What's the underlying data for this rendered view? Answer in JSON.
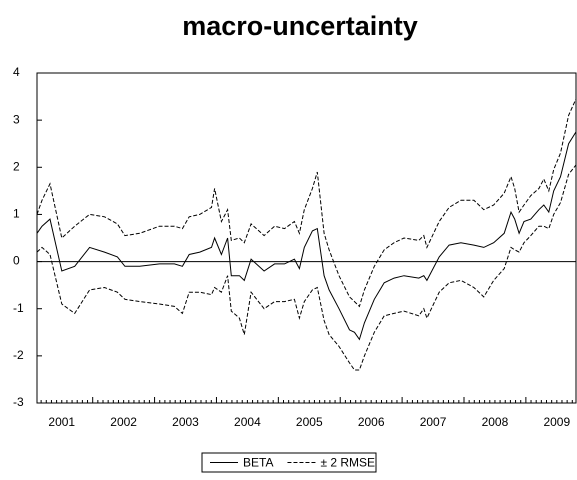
{
  "chart_data": {
    "type": "line",
    "title": "macro-uncertainty",
    "x": [
      2001.1,
      2001.18,
      2001.31,
      2001.5,
      2001.71,
      2001.95,
      2002.19,
      2002.4,
      2002.52,
      2002.76,
      2003.08,
      2003.32,
      2003.45,
      2003.56,
      2003.73,
      2003.92,
      2003.97,
      2004.08,
      2004.18,
      2004.24,
      2004.37,
      2004.45,
      2004.56,
      2004.77,
      2004.94,
      2005.1,
      2005.26,
      2005.34,
      2005.42,
      2005.55,
      2005.63,
      2005.74,
      2005.82,
      2005.98,
      2006.15,
      2006.23,
      2006.31,
      2006.39,
      2006.55,
      2006.71,
      2006.87,
      2007.03,
      2007.27,
      2007.35,
      2007.4,
      2007.6,
      2007.76,
      2007.95,
      2008.16,
      2008.32,
      2008.48,
      2008.65,
      2008.76,
      2008.82,
      2008.89,
      2008.97,
      2009.08,
      2009.21,
      2009.29,
      2009.37,
      2009.45,
      2009.56,
      2009.69,
      2009.81
    ],
    "series": [
      {
        "name": "BETA",
        "color": "#000000",
        "style": "solid",
        "values": [
          0.6,
          0.75,
          0.9,
          -0.2,
          -0.1,
          0.3,
          0.2,
          0.1,
          -0.1,
          -0.1,
          -0.05,
          -0.05,
          -0.1,
          0.15,
          0.2,
          0.3,
          0.5,
          0.15,
          0.5,
          -0.3,
          -0.3,
          -0.4,
          0.05,
          -0.2,
          -0.05,
          -0.05,
          0.05,
          -0.15,
          0.3,
          0.65,
          0.7,
          -0.3,
          -0.6,
          -1.0,
          -1.45,
          -1.5,
          -1.65,
          -1.3,
          -0.8,
          -0.45,
          -0.35,
          -0.3,
          -0.35,
          -0.3,
          -0.4,
          0.1,
          0.35,
          0.4,
          0.35,
          0.3,
          0.4,
          0.6,
          1.05,
          0.9,
          0.6,
          0.85,
          0.9,
          1.1,
          1.2,
          1.05,
          1.5,
          1.8,
          2.5,
          2.75
        ]
      },
      {
        "name": "± 2 RMSE",
        "color": "#000000",
        "style": "dashed",
        "values": [
          1.0,
          1.3,
          1.65,
          0.5,
          0.75,
          1.0,
          0.95,
          0.8,
          0.55,
          0.6,
          0.75,
          0.75,
          0.7,
          0.95,
          1.0,
          1.15,
          1.55,
          0.85,
          1.1,
          0.45,
          0.5,
          0.4,
          0.8,
          0.55,
          0.75,
          0.7,
          0.85,
          0.6,
          1.1,
          1.55,
          1.9,
          0.6,
          0.25,
          -0.3,
          -0.75,
          -0.85,
          -0.95,
          -0.6,
          -0.1,
          0.25,
          0.4,
          0.5,
          0.45,
          0.55,
          0.3,
          0.85,
          1.15,
          1.3,
          1.3,
          1.1,
          1.2,
          1.45,
          1.8,
          1.55,
          1.05,
          1.2,
          1.4,
          1.55,
          1.75,
          1.5,
          1.95,
          2.3,
          3.1,
          3.45
        ]
      },
      {
        "color": "#000000",
        "style": "dashed",
        "values": [
          0.2,
          0.3,
          0.15,
          -0.9,
          -1.1,
          -0.6,
          -0.55,
          -0.65,
          -0.8,
          -0.85,
          -0.9,
          -0.95,
          -1.1,
          -0.65,
          -0.65,
          -0.7,
          -0.55,
          -0.65,
          -0.3,
          -1.05,
          -1.2,
          -1.55,
          -0.65,
          -1.0,
          -0.85,
          -0.85,
          -0.8,
          -1.2,
          -0.85,
          -0.6,
          -0.55,
          -1.25,
          -1.55,
          -1.8,
          -2.15,
          -2.3,
          -2.3,
          -2.0,
          -1.5,
          -1.15,
          -1.1,
          -1.05,
          -1.15,
          -1.0,
          -1.2,
          -0.65,
          -0.45,
          -0.4,
          -0.55,
          -0.75,
          -0.4,
          -0.15,
          0.3,
          0.25,
          0.2,
          0.4,
          0.55,
          0.75,
          0.75,
          0.7,
          1.0,
          1.25,
          1.85,
          2.05
        ]
      }
    ],
    "xlim": [
      2001.1,
      2009.81
    ],
    "xticks": [
      {
        "value": 2001.5,
        "label": "2001"
      },
      {
        "value": 2002.5,
        "label": "2002"
      },
      {
        "value": 2003.5,
        "label": "2003"
      },
      {
        "value": 2004.5,
        "label": "2004"
      },
      {
        "value": 2005.5,
        "label": "2005"
      },
      {
        "value": 2006.5,
        "label": "2006"
      },
      {
        "value": 2007.5,
        "label": "2007"
      },
      {
        "value": 2008.5,
        "label": "2008"
      },
      {
        "value": 2009.5,
        "label": "2009"
      }
    ],
    "ylim": [
      -3,
      4
    ],
    "yticks": [
      -3,
      -2,
      -1,
      0,
      1,
      2,
      3,
      4
    ],
    "zero_line": true,
    "legend": "bottom"
  }
}
